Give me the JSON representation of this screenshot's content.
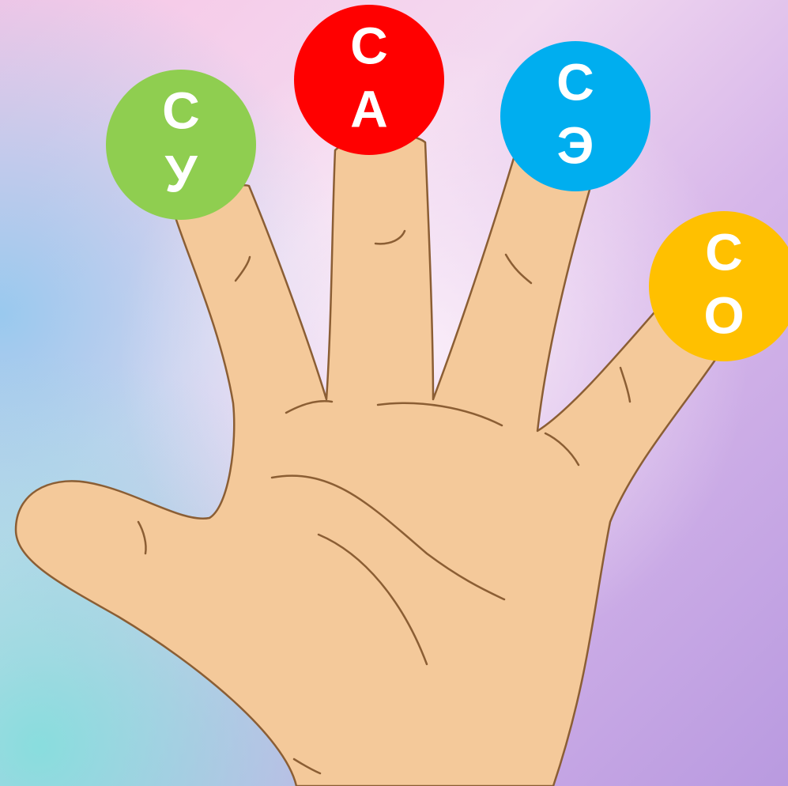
{
  "circles": [
    {
      "top": "С",
      "bottom": "У",
      "color": "#8fce50"
    },
    {
      "top": "С",
      "bottom": "А",
      "color": "#ff0000"
    },
    {
      "top": "С",
      "bottom": "Э",
      "color": "#00aeef"
    },
    {
      "top": "С",
      "bottom": "О",
      "color": "#ffc000"
    }
  ]
}
